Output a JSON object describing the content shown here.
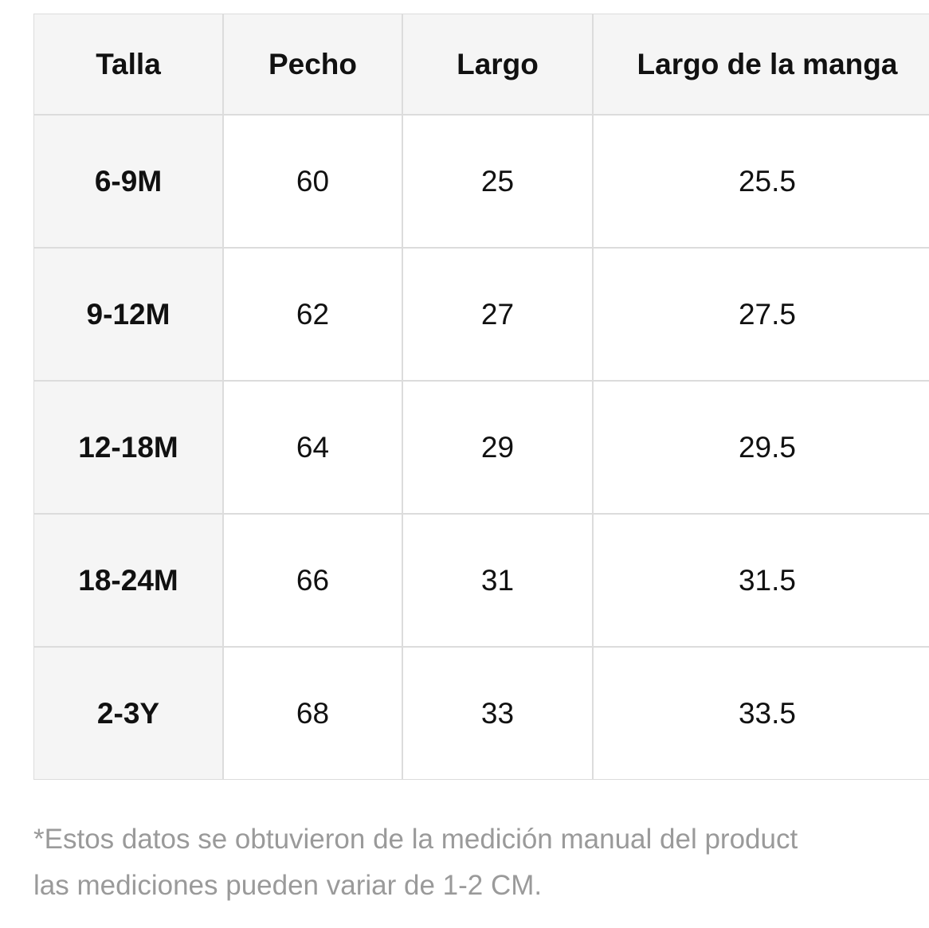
{
  "table": {
    "header": [
      "Talla",
      "Pecho",
      "Largo",
      "Largo de la manga"
    ],
    "rows": [
      [
        "6-9M",
        60,
        25,
        25.5
      ],
      [
        "9-12M",
        62,
        27,
        27.5
      ],
      [
        "12-18M",
        64,
        29,
        29.5
      ],
      [
        "18-24M",
        66,
        31,
        31.5
      ],
      [
        "2-3Y",
        68,
        33,
        33.5
      ]
    ]
  },
  "footnote": [
    "*Estos datos se obtuvieron de la medición manual del product",
    "las mediciones pueden variar de 1-2 CM."
  ]
}
